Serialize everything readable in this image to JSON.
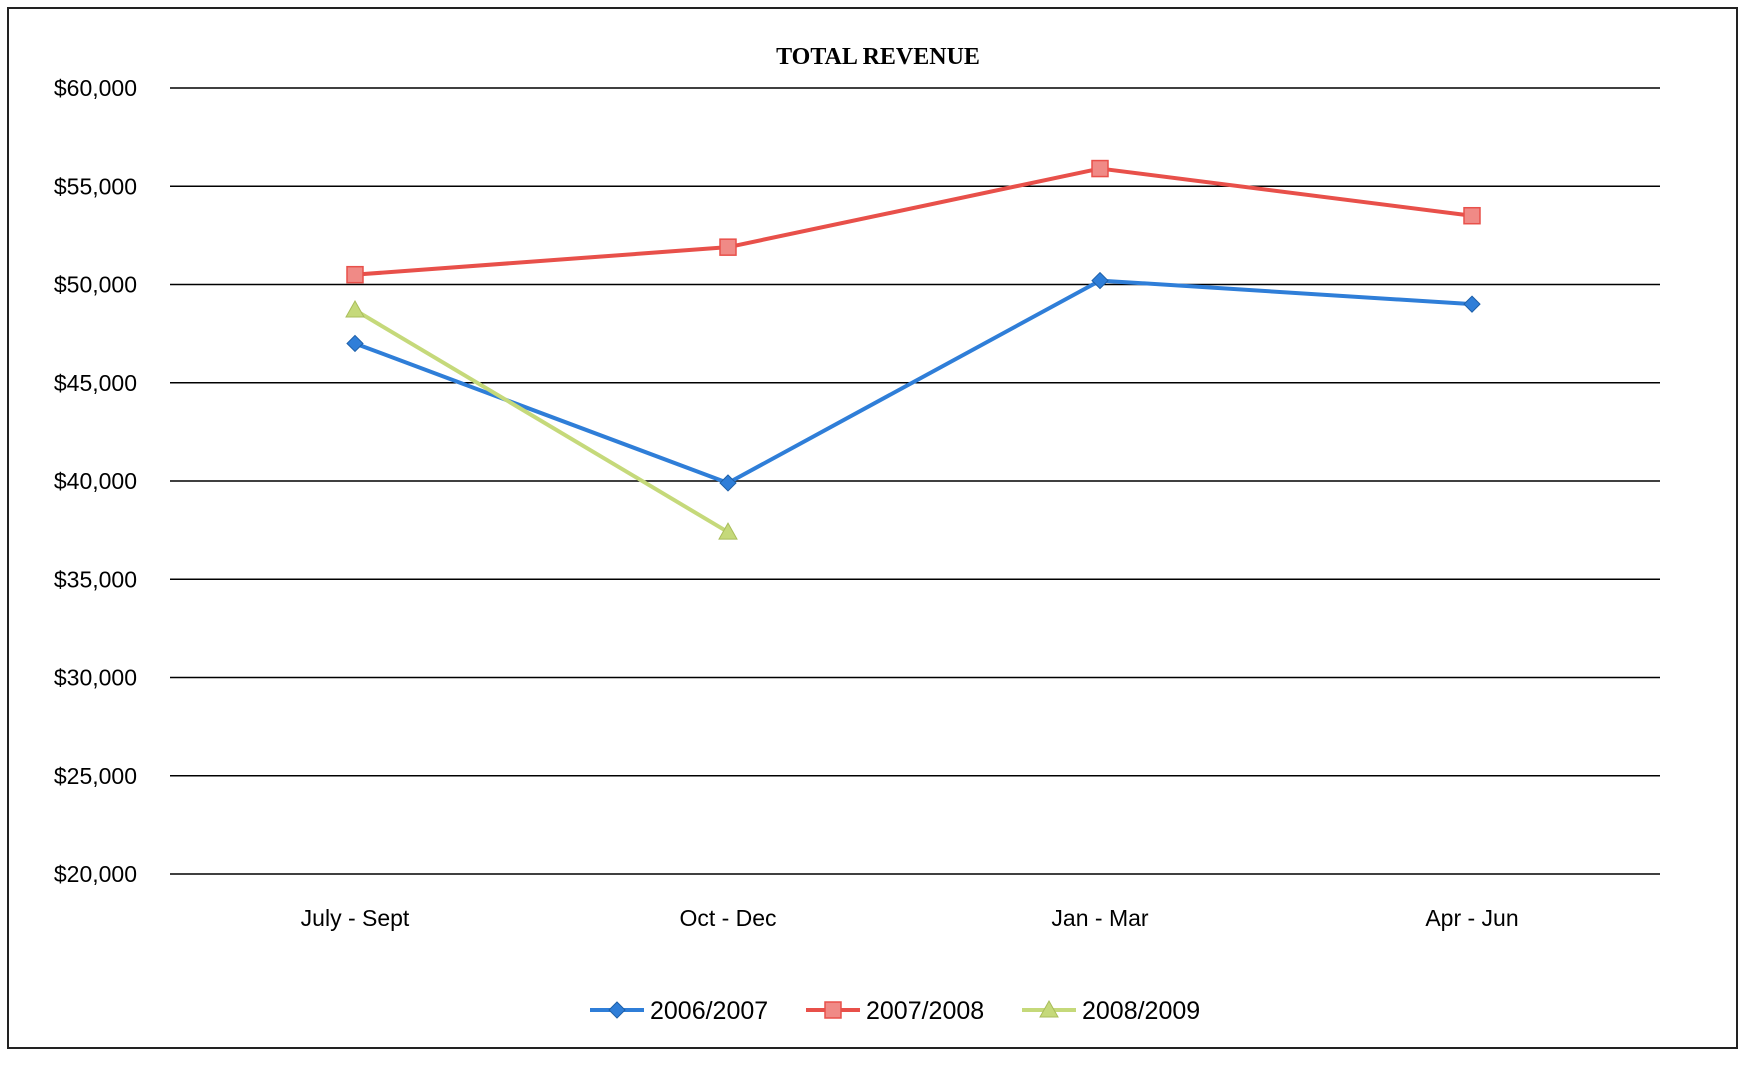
{
  "chart_data": {
    "type": "line",
    "title": "TOTAL REVENUE",
    "xlabel": "",
    "ylabel": "",
    "categories": [
      "July - Sept",
      "Oct - Dec",
      "Jan - Mar",
      "Apr - Jun"
    ],
    "ylim": [
      20000,
      60000
    ],
    "yticks": [
      60000,
      55000,
      50000,
      45000,
      40000,
      35000,
      30000,
      25000,
      20000
    ],
    "ytick_labels": [
      "$60,000",
      "$55,000",
      "$50,000",
      "$45,000",
      "$40,000",
      "$35,000",
      "$30,000",
      "$25,000",
      "$20,000"
    ],
    "grid": true,
    "legend_position": "bottom",
    "series": [
      {
        "name": "2006/2007",
        "color": "#2f7ed8",
        "marker": "diamond",
        "values": [
          47000,
          39900,
          50200,
          49000
        ]
      },
      {
        "name": "2007/2008",
        "color": "#e8504a",
        "marker": "square",
        "values": [
          50500,
          51900,
          55900,
          53500
        ]
      },
      {
        "name": "2008/2009",
        "color": "#c5d97a",
        "marker": "triangle",
        "values": [
          48700,
          37400,
          null,
          null
        ]
      }
    ]
  }
}
